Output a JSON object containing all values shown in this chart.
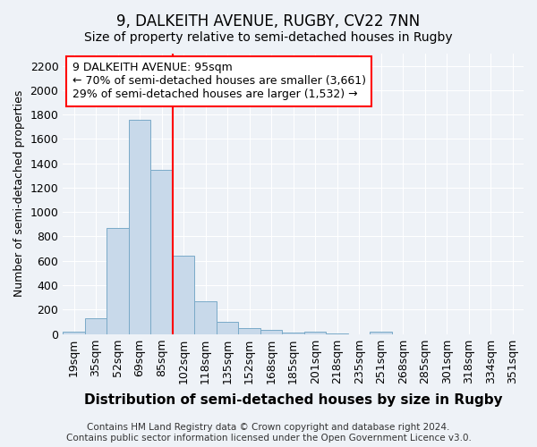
{
  "title": "9, DALKEITH AVENUE, RUGBY, CV22 7NN",
  "subtitle": "Size of property relative to semi-detached houses in Rugby",
  "xlabel": "Distribution of semi-detached houses by size in Rugby",
  "ylabel": "Number of semi-detached properties",
  "categories": [
    "19sqm",
    "35sqm",
    "52sqm",
    "69sqm",
    "85sqm",
    "102sqm",
    "118sqm",
    "135sqm",
    "152sqm",
    "168sqm",
    "185sqm",
    "201sqm",
    "218sqm",
    "235sqm",
    "251sqm",
    "268sqm",
    "285sqm",
    "301sqm",
    "318sqm",
    "334sqm",
    "351sqm"
  ],
  "values": [
    15,
    125,
    870,
    1760,
    1350,
    645,
    270,
    100,
    50,
    30,
    10,
    15,
    5,
    0,
    20,
    0,
    0,
    0,
    0,
    0,
    0
  ],
  "bar_color": "#c8d9ea",
  "bar_edge_color": "#7aaac8",
  "marker_bin_index": 5,
  "marker_color": "red",
  "annotation_line1": "9 DALKEITH AVENUE: 95sqm",
  "annotation_line2": "← 70% of semi-detached houses are smaller (3,661)",
  "annotation_line3": "29% of semi-detached houses are larger (1,532) →",
  "annotation_box_color": "white",
  "annotation_box_edge": "red",
  "ylim": [
    0,
    2300
  ],
  "yticks": [
    0,
    200,
    400,
    600,
    800,
    1000,
    1200,
    1400,
    1600,
    1800,
    2000,
    2200
  ],
  "footer": "Contains HM Land Registry data © Crown copyright and database right 2024.\nContains public sector information licensed under the Open Government Licence v3.0.",
  "bg_color": "#eef2f7",
  "grid_color": "white",
  "title_fontsize": 12,
  "subtitle_fontsize": 10,
  "xlabel_fontsize": 11,
  "ylabel_fontsize": 9,
  "tick_fontsize": 9,
  "footer_fontsize": 7.5,
  "annotation_fontsize": 9
}
